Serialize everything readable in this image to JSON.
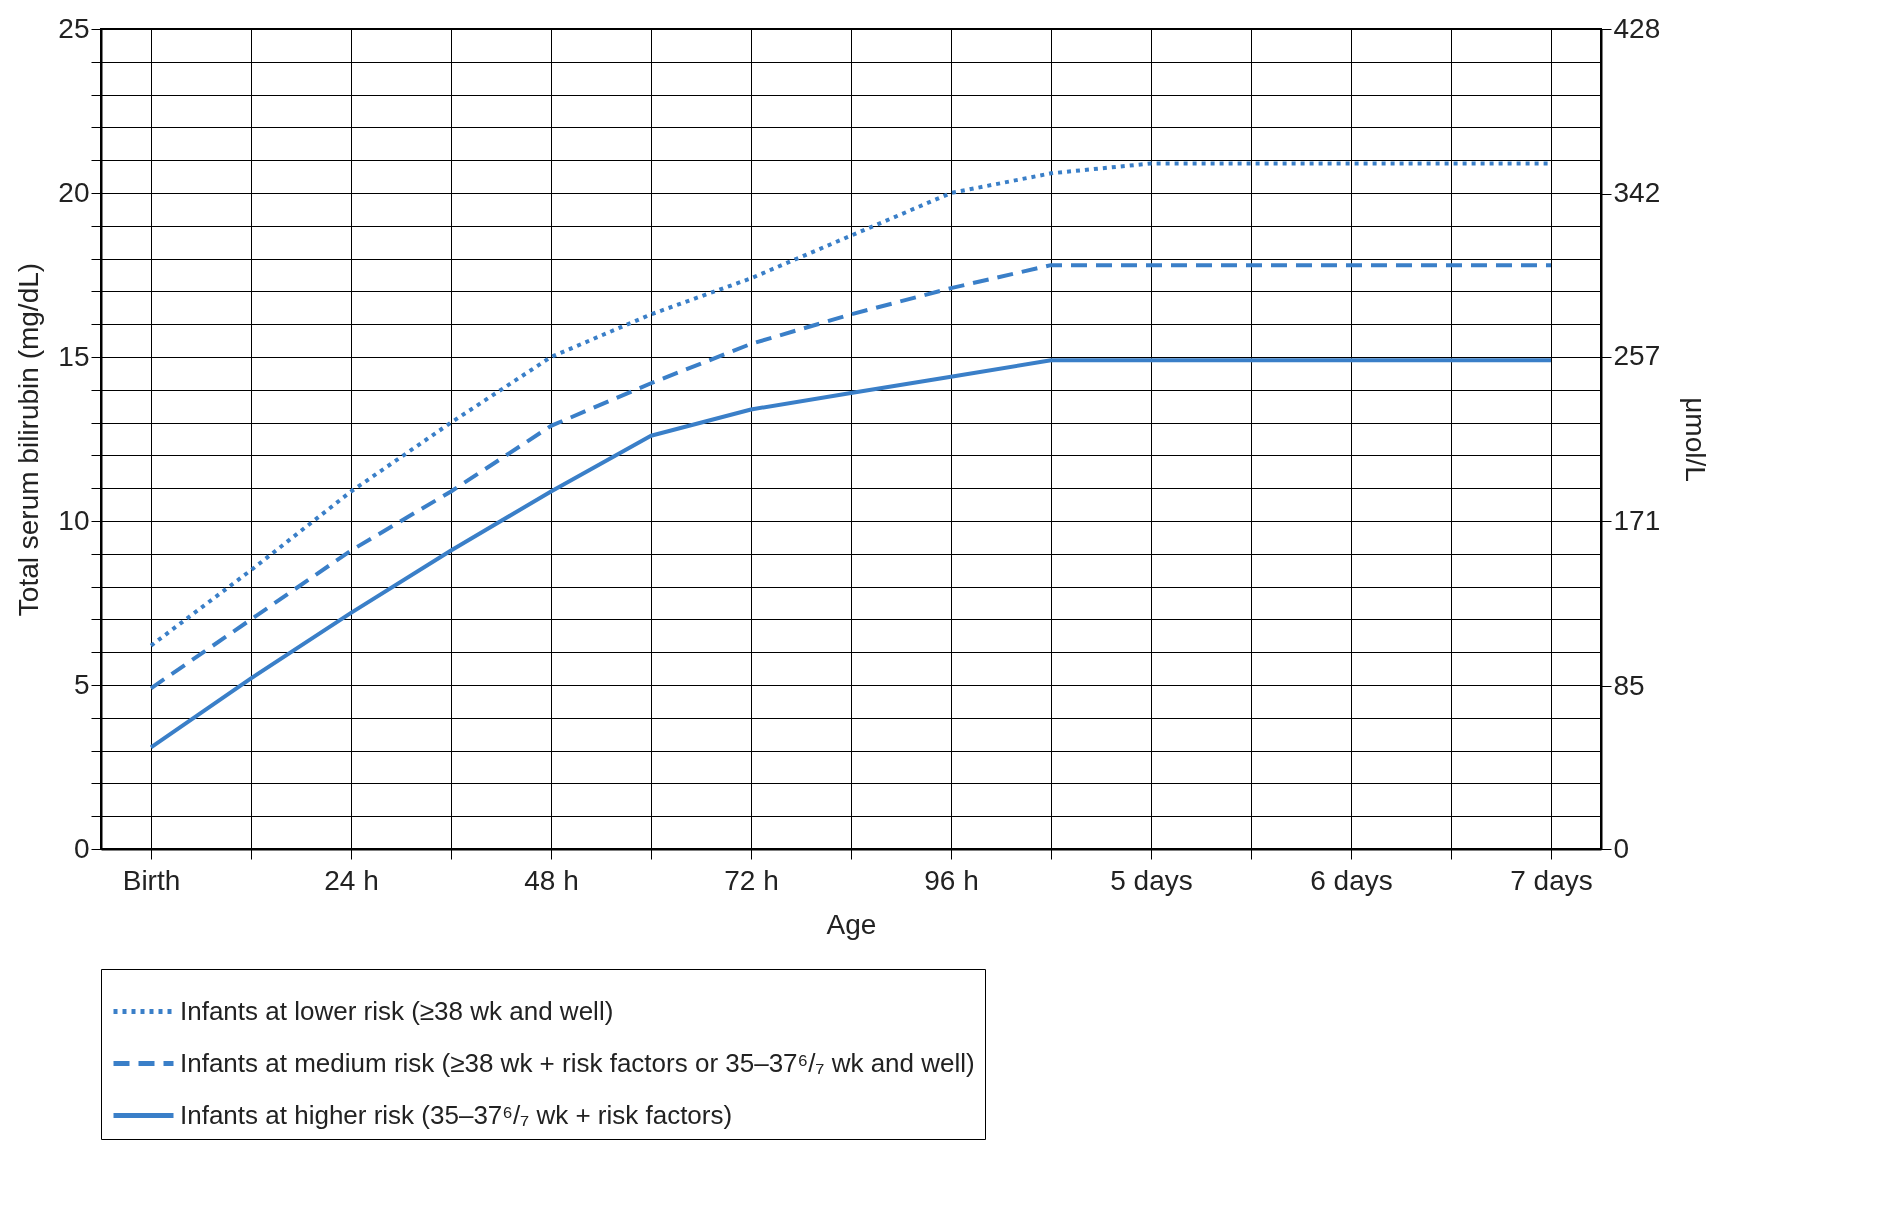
{
  "chart_data": {
    "type": "line",
    "xlabel": "Age",
    "ylabel": "Total serum bilirubin (mg/dL)",
    "y2label": "μmol/L",
    "categories": [
      "Birth",
      null,
      "24 h",
      null,
      "48 h",
      null,
      "72 h",
      null,
      "96 h",
      null,
      "5 days",
      null,
      "6 days",
      null,
      "7 days"
    ],
    "series": [
      {
        "name": "Infants at lower risk (≥38 wk and well)",
        "color": "#3a7fc8",
        "line_style": "dotted",
        "values": [
          6.2,
          8.5,
          10.9,
          13.0,
          15.0,
          16.3,
          17.4,
          18.7,
          20.0,
          20.6,
          20.9,
          20.9,
          20.9,
          20.9,
          20.9
        ]
      },
      {
        "name": "Infants at medium risk (≥38 wk + risk factors or 35–37⁶/₇ wk and well)",
        "color": "#3a7fc8",
        "line_style": "dashed",
        "values": [
          4.9,
          7.0,
          9.1,
          10.9,
          12.9,
          14.2,
          15.4,
          16.3,
          17.1,
          17.8,
          17.8,
          17.8,
          17.8,
          17.8,
          17.8
        ]
      },
      {
        "name": "Infants at higher risk (35–37⁶/₇ wk + risk factors)",
        "color": "#3a7fc8",
        "line_style": "solid",
        "values": [
          3.1,
          5.2,
          7.2,
          9.1,
          10.9,
          12.6,
          13.4,
          13.9,
          14.4,
          14.9,
          14.9,
          14.9,
          14.9,
          14.9,
          14.9
        ]
      }
    ],
    "ylim": [
      0,
      25
    ],
    "yticks": [
      0,
      {
        "value": 1,
        "label": null
      },
      {
        "value": 2,
        "label": null
      },
      {
        "value": 3,
        "label": null
      },
      {
        "value": 4,
        "label": null
      },
      5,
      {
        "value": 6,
        "label": null
      },
      {
        "value": 7,
        "label": null
      },
      {
        "value": 8,
        "label": null
      },
      {
        "value": 9,
        "label": null
      },
      10,
      {
        "value": 11,
        "label": null
      },
      {
        "value": 12,
        "label": null
      },
      {
        "value": 13,
        "label": null
      },
      {
        "value": 14,
        "label": null
      },
      15,
      {
        "value": 16,
        "label": null
      },
      {
        "value": 17,
        "label": null
      },
      {
        "value": 18,
        "label": null
      },
      {
        "value": 19,
        "label": null
      },
      20,
      {
        "value": 21,
        "label": null
      },
      {
        "value": 22,
        "label": null
      },
      {
        "value": 23,
        "label": null
      },
      {
        "value": 24,
        "label": null
      },
      25
    ],
    "y2lim": [
      0,
      428
    ],
    "y2ticks": [
      0,
      85,
      171,
      257,
      342,
      428
    ],
    "grid": true,
    "legend": "bottom",
    "marker": "none"
  }
}
